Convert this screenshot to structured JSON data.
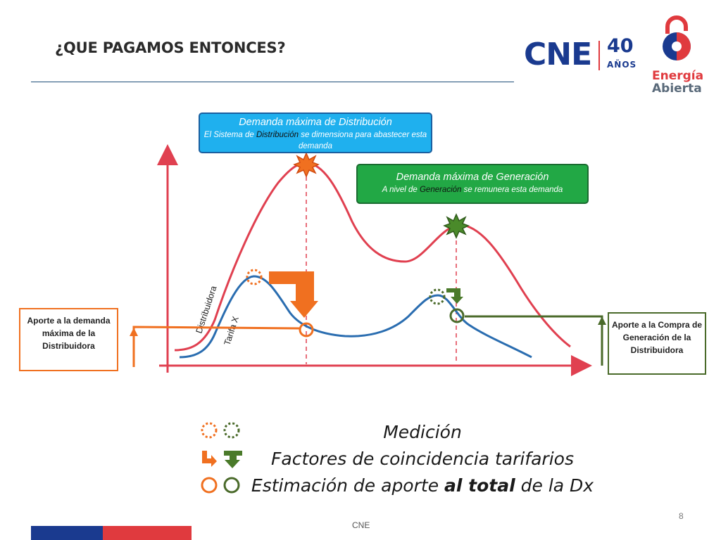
{
  "header": {
    "title": "¿QUE PAGAMOS ENTONCES?",
    "logo_cne": "CNE",
    "logo_40": "40",
    "logo_anos": "AÑOS",
    "logo_energia": "Energía",
    "logo_abierta": "Abierta"
  },
  "callouts": {
    "distribution": {
      "heading": "Demanda máxima de Distribución",
      "sub_before": "El Sistema de ",
      "sub_keyword": "Distribución",
      "sub_after": " se dimensiona para abastecer esta demanda"
    },
    "generation": {
      "heading": "Demanda máxima de Generación",
      "sub_before": "A nivel de ",
      "sub_keyword": "Generación",
      "sub_after": " se remunera esta demanda"
    }
  },
  "side_boxes": {
    "left": "Aporte a la demanda máxima de la Distribuidora",
    "right": "Aporte a la Compra de Generación de la Distribuidora"
  },
  "curve_labels": {
    "red": "Distribuidora",
    "blue": "Tarifa X"
  },
  "legend": {
    "measurement": "Medición",
    "factors": "Factores de coincidencia tarifarios",
    "estimate_before": "Estimación de aporte ",
    "estimate_bold": "al total",
    "estimate_after": " de la Dx"
  },
  "footer": {
    "source": "CNE",
    "page": "8"
  },
  "colors": {
    "distribution_curve": "#e04050",
    "client_curve": "#2a6db0",
    "distribution_accent": "#f07020",
    "generation_accent": "#4a6a2a",
    "callout_distribution": "#1fb0ee",
    "callout_generation": "#22a845",
    "brand_blue": "#1a3a8f",
    "brand_red": "#e03a3e"
  },
  "icons": {
    "measurement": "dotted-circle-icon",
    "factors": "bent-arrow-icon",
    "estimate": "open-circle-icon",
    "peak": "starburst-icon"
  }
}
